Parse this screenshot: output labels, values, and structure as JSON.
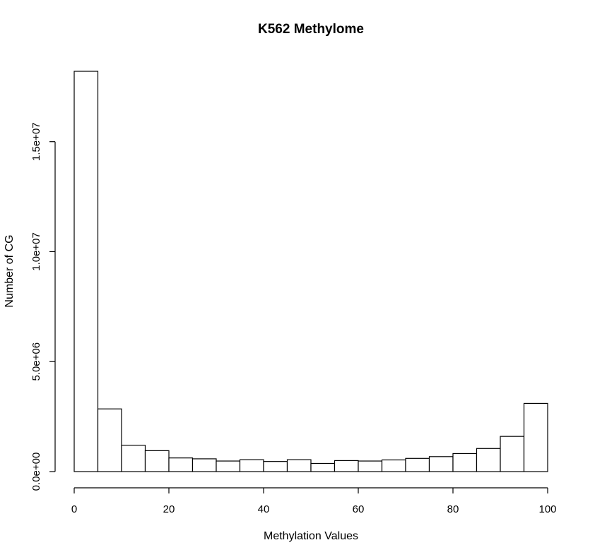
{
  "chart_data": {
    "type": "bar",
    "title": "K562 Methylome",
    "xlabel": "Methylation Values",
    "ylabel": "Number of CG",
    "bin_edges": [
      0,
      5,
      10,
      15,
      20,
      25,
      30,
      35,
      40,
      45,
      50,
      55,
      60,
      65,
      70,
      75,
      80,
      85,
      90,
      95,
      100
    ],
    "values": [
      18200000,
      2850000,
      1200000,
      950000,
      620000,
      580000,
      480000,
      540000,
      460000,
      540000,
      370000,
      500000,
      480000,
      530000,
      600000,
      680000,
      820000,
      1050000,
      1600000,
      3100000
    ],
    "xlim": [
      0,
      100
    ],
    "ylim": [
      0,
      18200000
    ],
    "x_ticks": [
      0,
      20,
      40,
      60,
      80,
      100
    ],
    "x_tick_labels": [
      "0",
      "20",
      "40",
      "60",
      "80",
      "100"
    ],
    "y_ticks": [
      0,
      5000000,
      10000000,
      15000000
    ],
    "y_tick_labels": [
      "0.0e+00",
      "5.0e+06",
      "1.0e+07",
      "1.5e+07"
    ],
    "grid": false,
    "legend": "none",
    "colors": {
      "bar_fill": "#ffffff",
      "bar_stroke": "#000000"
    }
  }
}
